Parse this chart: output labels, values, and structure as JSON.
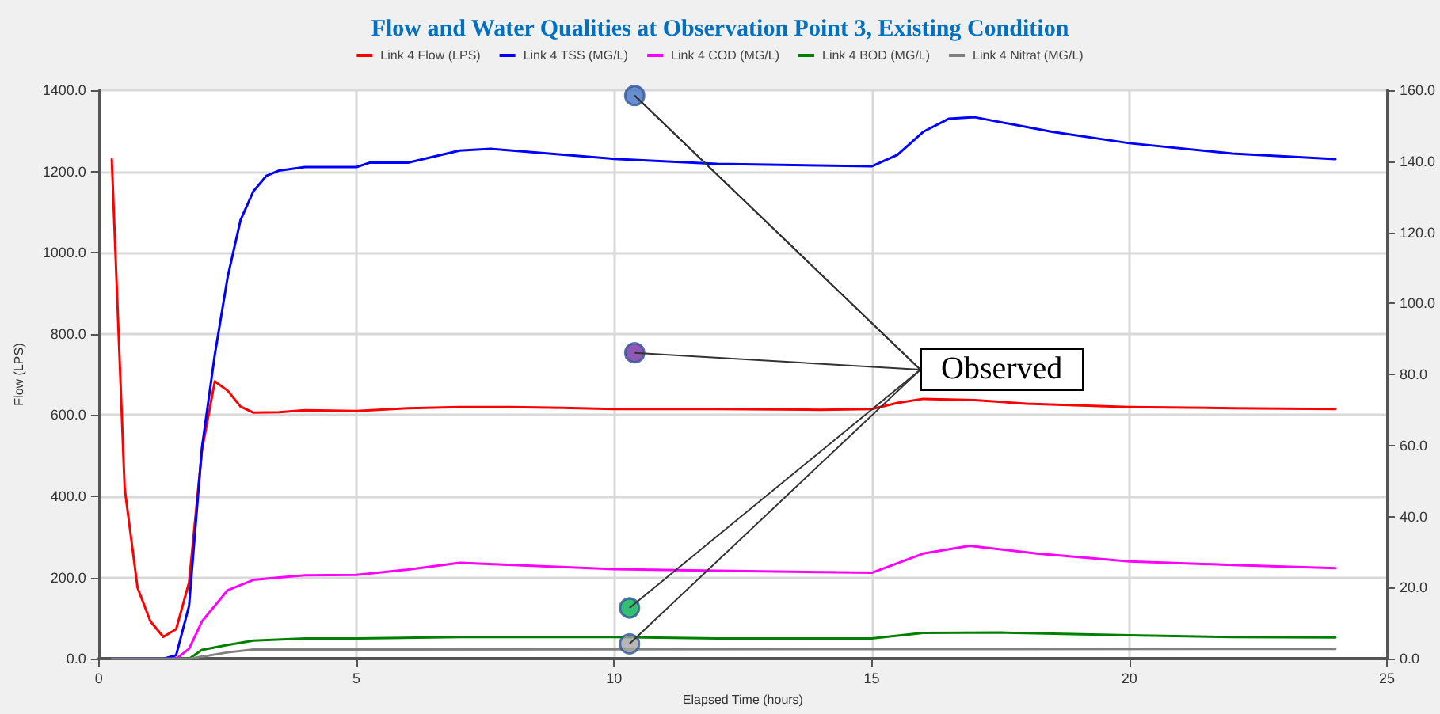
{
  "chart_data": {
    "type": "line",
    "title": "Flow and Water Qualities at Observation Point 3, Existing Condition",
    "xlabel": "Elapsed Time (hours)",
    "ylabel": "Flow (LPS)",
    "annotations": [
      {
        "text": "Observed",
        "x": 10.4,
        "y": 1387
      }
    ],
    "legend": "top",
    "grid": true,
    "marker": "none",
    "xlim": [
      0,
      25
    ],
    "xticks": [
      0,
      5,
      10,
      15,
      20,
      25
    ],
    "ylim": [
      0,
      1400
    ],
    "yticks": [
      {
        "value": 0,
        "label": "0.0"
      },
      {
        "value": 200,
        "label": "200.0"
      },
      {
        "value": 400,
        "label": "400.0"
      },
      {
        "value": 600,
        "label": "600.0"
      },
      {
        "value": 800,
        "label": "800.0"
      },
      {
        "value": 1000,
        "label": "1000.0"
      },
      {
        "value": 1200,
        "label": "1200.0"
      },
      {
        "value": 1400,
        "label": "1400.0"
      }
    ],
    "y2lim": [
      0,
      160
    ],
    "y2ticks": [
      {
        "value": 0,
        "label": "0.0"
      },
      {
        "value": 20,
        "label": "20.0"
      },
      {
        "value": 40,
        "label": "40.0"
      },
      {
        "value": 60,
        "label": "60.0"
      },
      {
        "value": 80,
        "label": "80.0"
      },
      {
        "value": 100,
        "label": "100.0"
      },
      {
        "value": 120,
        "label": "120.0"
      },
      {
        "value": 140,
        "label": "140.0"
      },
      {
        "value": 160,
        "label": "160.0"
      }
    ],
    "series": [
      {
        "name": "Link 4 Flow (LPS)",
        "color": "#ff0000",
        "x": [
          0.25,
          0.5,
          0.75,
          1,
          1.25,
          1.5,
          1.75,
          2,
          2.25,
          2.5,
          2.75,
          3,
          3.5,
          4,
          5,
          6,
          7,
          8,
          9,
          10,
          12,
          14,
          15,
          15.5,
          16,
          17,
          18,
          20,
          22,
          24
        ],
        "values": [
          1230,
          420,
          175,
          92,
          54,
          73,
          188,
          513,
          683,
          660,
          621,
          606,
          607,
          612,
          610,
          617,
          620,
          620,
          618,
          615,
          615,
          613,
          615,
          630,
          640,
          637,
          628,
          620,
          617,
          615
        ]
      },
      {
        "name": "Link 4 TSS (MG/L)",
        "color": "#0000ff",
        "axis": "y2",
        "x": [
          0.25,
          1.25,
          1.5,
          1.75,
          2,
          2.25,
          2.5,
          2.75,
          3,
          3.25,
          3.5,
          4,
          5,
          5.25,
          6,
          7,
          7.6,
          10,
          12,
          15,
          15.5,
          16,
          16.5,
          17,
          18.5,
          20,
          22,
          24
        ],
        "values": [
          0,
          0,
          1,
          14.9,
          59.4,
          85.6,
          107.5,
          123.5,
          131.6,
          135.9,
          137.4,
          138.4,
          138.4,
          139.6,
          139.6,
          143,
          143.5,
          140.7,
          139.3,
          138.6,
          141.8,
          148.3,
          152,
          152.4,
          148.3,
          145.1,
          142.2,
          140.6
        ]
      },
      {
        "name": "Link 4 COD (MG/L)",
        "color": "#ff00ff",
        "axis": "y2",
        "x": [
          0.25,
          1.5,
          1.75,
          2,
          2.5,
          3,
          3.5,
          4,
          5,
          6,
          7,
          10,
          12,
          15,
          16,
          16.9,
          18.2,
          20,
          22,
          24
        ],
        "values": [
          0,
          0,
          2.8,
          10.5,
          19.3,
          22.2,
          22.9,
          23.5,
          23.6,
          25.1,
          27,
          25.2,
          24.8,
          24.2,
          29.6,
          31.8,
          29.6,
          27.4,
          26.4,
          25.5
        ]
      },
      {
        "name": "Link 4 BOD (MG/L)",
        "color": "#008000",
        "axis": "y2",
        "x": [
          0.25,
          1.75,
          2,
          2.5,
          3,
          4,
          5,
          7,
          10,
          12,
          15,
          16,
          17.5,
          20,
          22,
          24
        ],
        "values": [
          0,
          0,
          2.5,
          3.9,
          5.1,
          5.7,
          5.7,
          6.1,
          6.1,
          5.7,
          5.7,
          7.3,
          7.4,
          6.6,
          6.1,
          6.0
        ]
      },
      {
        "name": "Link 4 Nitrat (MG/L)",
        "color": "#808080",
        "axis": "y2",
        "x": [
          0.25,
          1.75,
          2.5,
          3,
          5,
          24
        ],
        "values": [
          0,
          0,
          1.8,
          2.6,
          2.6,
          2.8
        ]
      },
      {
        "type": "scatter",
        "marker": "circle",
        "axis": "y2",
        "x": [
          10.4,
          10.4,
          10.3,
          10.3
        ],
        "values": [
          158.5,
          86.1,
          14.3,
          4.2
        ],
        "colors": [
          "#4472c4",
          "#7030a0",
          "#00b050",
          "#a5a5a5"
        ]
      }
    ]
  }
}
